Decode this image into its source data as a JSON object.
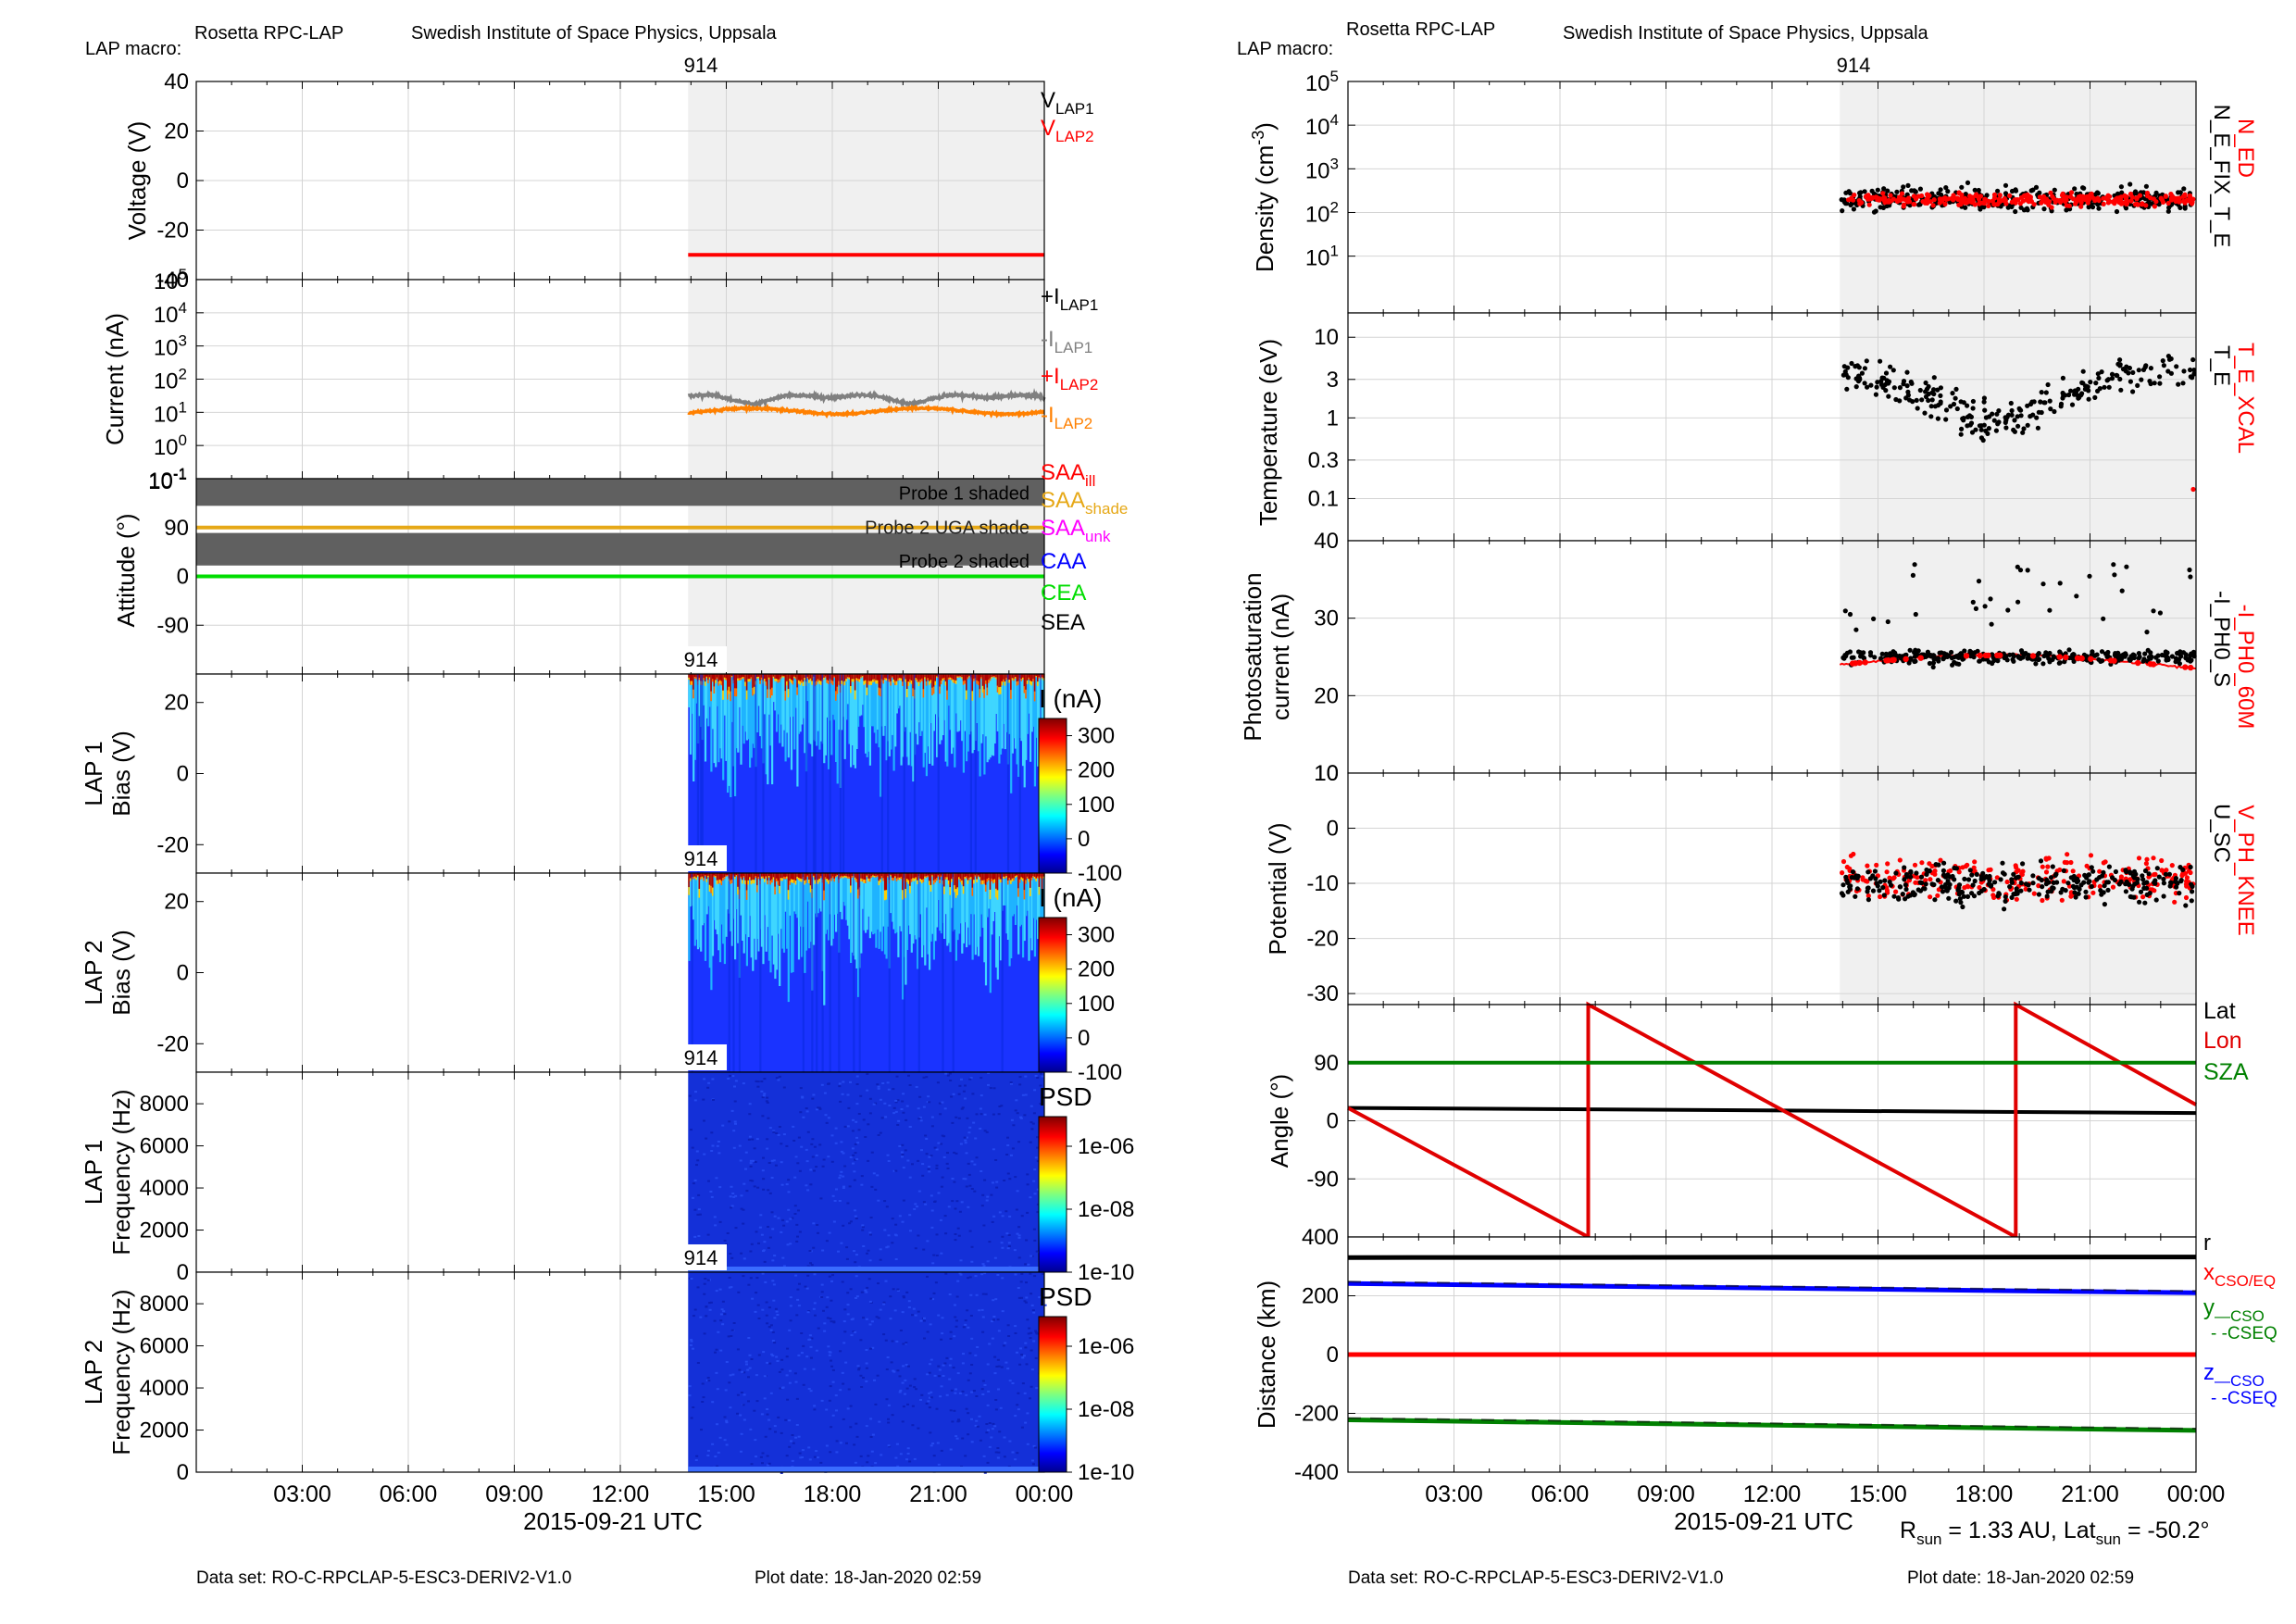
{
  "header": {
    "left": {
      "mission": "Rosetta RPC-LAP",
      "institute": "Swedish Institute of Space Physics, Uppsala",
      "macro_label": "LAP macro:",
      "macro_value": "914"
    },
    "right": {
      "mission": "Rosetta RPC-LAP",
      "institute": "Swedish Institute of Space Physics, Uppsala",
      "macro_label": "LAP macro:",
      "macro_value": "914"
    }
  },
  "footer": {
    "left": {
      "dataset": "Data set: RO-C-RPCLAP-5-ESC3-DERIV2-V1.0",
      "plot_date": "Plot date: 18-Jan-2020 02:59"
    },
    "right": {
      "dataset": "Data set: RO-C-RPCLAP-5-ESC3-DERIV2-V1.0",
      "plot_date": "Plot date: 18-Jan-2020 02:59"
    },
    "rsun_label": "R",
    "rsun_sub": "sun",
    "rsun_value": " = 1.33 AU, Lat",
    "lat_sub": "sun",
    "lat_value": " = -50.2°"
  },
  "time_axis": {
    "ticks": [
      "03:00",
      "06:00",
      "09:00",
      "12:00",
      "15:00",
      "18:00",
      "21:00",
      "00:00"
    ],
    "xlabel": "2015-09-21 UTC"
  },
  "colors": {
    "lap1": "#000000",
    "lap2": "#ff0000",
    "i_lap1_neg": "#808080",
    "i_lap2_neg": "#ff8000",
    "saa_shade": "#e6a817",
    "saa_unk": "#ff00ff",
    "caa": "#0000ff",
    "cea": "#00dd00",
    "shaded_band": "#606060",
    "grey_bg": "#f0f0f0",
    "lon": "#e00000",
    "sza": "#008000",
    "z": "#0000ff"
  },
  "chart_data": [
    {
      "id": "voltage",
      "type": "line",
      "ylabel": "Voltage (V)",
      "ylim": [
        -40,
        40
      ],
      "yticks": [
        "40",
        "20",
        "0",
        "-20",
        "-40"
      ],
      "macro_label": "914",
      "macro_span_hours": [
        13.92,
        24
      ],
      "series": [
        {
          "name": "V_LAP1",
          "name_base": "V",
          "name_sub": "LAP1",
          "color": "#000000",
          "values": []
        },
        {
          "name": "V_LAP2",
          "name_base": "V",
          "name_sub": "LAP2",
          "color": "#ff0000",
          "x_hours": [
            13.92,
            24
          ],
          "values": [
            -30,
            -30
          ]
        }
      ]
    },
    {
      "id": "current",
      "type": "line",
      "ylabel": "Current (nA)",
      "yscale": "log",
      "ylim": [
        0.1,
        100000
      ],
      "yticks": [
        {
          "base": "10",
          "exp": "5"
        },
        {
          "base": "10",
          "exp": "4"
        },
        {
          "base": "10",
          "exp": "3"
        },
        {
          "base": "10",
          "exp": "2"
        },
        {
          "base": "10",
          "exp": "1"
        },
        {
          "base": "10",
          "exp": "0"
        },
        {
          "base": "10",
          "exp": "-1"
        }
      ],
      "series": [
        {
          "name": "+I_LAP1",
          "name_base": "+I",
          "name_sub": "LAP1",
          "color": "#000000",
          "values": []
        },
        {
          "name": "-I_LAP1",
          "name_base": "-I",
          "name_sub": "LAP1",
          "color": "#808080",
          "x_hours": [
            13.92,
            24
          ],
          "approx_value": 28
        },
        {
          "name": "+I_LAP2",
          "name_base": "+I",
          "name_sub": "LAP2",
          "color": "#ff0000",
          "values": []
        },
        {
          "name": "-I_LAP2",
          "name_base": "-I",
          "name_sub": "LAP2",
          "color": "#ff8000",
          "x_hours": [
            13.92,
            24
          ],
          "approx_value": 11
        }
      ]
    },
    {
      "id": "attitude",
      "type": "line",
      "ylabel": "Attitude (°)",
      "ylim": [
        -180,
        180
      ],
      "yticks": [
        "90",
        "0",
        "-90"
      ],
      "bands": [
        {
          "label": "Probe 1 shaded",
          "y": [
            130,
            180
          ]
        },
        {
          "label": "Probe 2 UGA shade",
          "y": [
            88,
            95
          ]
        },
        {
          "label": "Probe 2 shaded",
          "y": [
            20,
            80
          ]
        }
      ],
      "series": [
        {
          "name": "SAA_ill",
          "name_base": "SAA",
          "name_sub": "ill",
          "color": "#ff0000"
        },
        {
          "name": "SAA_shade",
          "name_base": "SAA",
          "name_sub": "shade",
          "color": "#e6a817",
          "values": [
            90,
            90
          ]
        },
        {
          "name": "SAA_unk",
          "name_base": "SAA",
          "name_sub": "unk",
          "color": "#ff00ff"
        },
        {
          "name": "CAA",
          "name_base": "CAA",
          "name_sub": "",
          "color": "#0000ff"
        },
        {
          "name": "CEA",
          "name_base": "CEA",
          "name_sub": "",
          "color": "#00dd00",
          "values": [
            0,
            0
          ]
        },
        {
          "name": "SEA",
          "name_base": "SEA",
          "name_sub": "",
          "color": "#000000"
        }
      ]
    },
    {
      "id": "lap1_sweep",
      "type": "heatmap",
      "ylabel": "LAP 1\nBias (V)",
      "ylim": [
        -28,
        28
      ],
      "yticks": [
        "20",
        "0",
        "-20"
      ],
      "macro_label": "914",
      "colorbar": {
        "label": "I (nA)",
        "ticks": [
          "300",
          "200",
          "100",
          "0",
          "-100"
        ],
        "range": [
          -100,
          350
        ]
      }
    },
    {
      "id": "lap2_sweep",
      "type": "heatmap",
      "ylabel": "LAP 2\nBias (V)",
      "ylim": [
        -28,
        28
      ],
      "yticks": [
        "20",
        "0",
        "-20"
      ],
      "macro_label": "914",
      "colorbar": {
        "label": "I (nA)",
        "ticks": [
          "300",
          "200",
          "100",
          "0",
          "-100"
        ],
        "range": [
          -100,
          350
        ]
      }
    },
    {
      "id": "lap1_psd",
      "type": "heatmap",
      "ylabel": "LAP 1\nFrequency (Hz)",
      "ylim": [
        0,
        9500
      ],
      "yticks": [
        "8000",
        "6000",
        "4000",
        "2000",
        "0"
      ],
      "macro_label": "914",
      "colorbar": {
        "label": "PSD",
        "ticks": [
          "1e-06",
          "1e-08",
          "1e-10"
        ]
      }
    },
    {
      "id": "lap2_psd",
      "type": "heatmap",
      "ylabel": "LAP 2\nFrequency (Hz)",
      "ylim": [
        0,
        9500
      ],
      "yticks": [
        "8000",
        "6000",
        "4000",
        "2000",
        "0"
      ],
      "macro_label": "914",
      "colorbar": {
        "label": "PSD",
        "ticks": [
          "1e-06",
          "1e-08",
          "1e-10"
        ]
      }
    },
    {
      "id": "density",
      "type": "scatter",
      "ylabel": "Density (cm",
      "ylabel_sup": "-3",
      "ylabel_end": ")",
      "yscale": "log",
      "ylim": [
        0.5,
        100000
      ],
      "yticks": [
        {
          "base": "10",
          "exp": "5"
        },
        {
          "base": "10",
          "exp": "4"
        },
        {
          "base": "10",
          "exp": "3"
        },
        {
          "base": "10",
          "exp": "2"
        },
        {
          "base": "10",
          "exp": "1"
        }
      ],
      "macro_label": "914",
      "series": [
        {
          "name": "N_ED",
          "color": "#ff0000",
          "approx_median": 200
        },
        {
          "name": "N_E_FIX_T_E",
          "color": "#000000",
          "approx_median": 200
        }
      ]
    },
    {
      "id": "temperature",
      "type": "scatter",
      "ylabel": "Temperature (eV)",
      "yscale": "log",
      "ylim": [
        0.03,
        20
      ],
      "yticks": [
        "10",
        "3",
        "1",
        "0.3",
        "0.1"
      ],
      "series": [
        {
          "name": "T_E_XCAL",
          "color": "#ff0000"
        },
        {
          "name": "T_E",
          "color": "#000000",
          "approx_median": 3
        }
      ]
    },
    {
      "id": "photosaturation",
      "type": "scatter",
      "ylabel": "Photosaturation\ncurrent (nA)",
      "ylim": [
        10,
        40
      ],
      "yticks": [
        "40",
        "30",
        "20",
        "10"
      ],
      "series": [
        {
          "name": "-I_PH0_60M",
          "color": "#ff0000",
          "approx_median": 24
        },
        {
          "name": "-I_PH0_S",
          "color": "#000000",
          "approx_median": 25
        }
      ]
    },
    {
      "id": "potential",
      "type": "scatter",
      "ylabel": "Potential (V)",
      "ylim": [
        -32,
        10
      ],
      "yticks": [
        "10",
        "0",
        "-10",
        "-20",
        "-30"
      ],
      "series": [
        {
          "name": "V_PH_KNEE",
          "color": "#ff0000",
          "approx_median": -9
        },
        {
          "name": "U_SC",
          "color": "#000000",
          "approx_median": -10
        }
      ]
    },
    {
      "id": "angle",
      "type": "line",
      "ylabel": "Angle (°)",
      "ylim": [
        -180,
        180
      ],
      "yticks": [
        "90",
        "0",
        "-90"
      ],
      "series": [
        {
          "name": "Lat",
          "color": "#000000",
          "x_hours": [
            0,
            24
          ],
          "values": [
            20,
            12
          ]
        },
        {
          "name": "Lon",
          "color": "#e00000",
          "x_hours": [
            0,
            6.8,
            6.8,
            18.9,
            18.9,
            24
          ],
          "values": [
            20,
            -180,
            180,
            -180,
            180,
            25
          ]
        },
        {
          "name": "SZA",
          "color": "#008000",
          "x_hours": [
            0,
            24
          ],
          "values": [
            90,
            90
          ]
        }
      ]
    },
    {
      "id": "distance",
      "type": "line",
      "ylabel": "Distance (km)",
      "ylim": [
        -400,
        400
      ],
      "yticks": [
        "400",
        "200",
        "0",
        "-200",
        "-400"
      ],
      "series": [
        {
          "name": "r",
          "label_base": "r",
          "label_sub": "",
          "color": "#000000",
          "x_hours": [
            0,
            24
          ],
          "values": [
            330,
            332
          ]
        },
        {
          "name": "x_CSO/EQ",
          "label_base": "x",
          "label_sub": "CSO/EQ",
          "color": "#ff0000",
          "x_hours": [
            0,
            24
          ],
          "values": [
            0,
            0
          ]
        },
        {
          "name": "y_CSO",
          "label_base": "y",
          "label_sub": "—CSO",
          "label_extra": "- -CSEQ",
          "color": "#008000",
          "x_hours": [
            0,
            24
          ],
          "values": [
            -222,
            -258
          ]
        },
        {
          "name": "z_CSO",
          "label_base": "z",
          "label_sub": "—CSO",
          "label_extra": "- -CSEQ",
          "color": "#0000ff",
          "x_hours": [
            0,
            24
          ],
          "values": [
            242,
            210
          ]
        }
      ]
    }
  ]
}
